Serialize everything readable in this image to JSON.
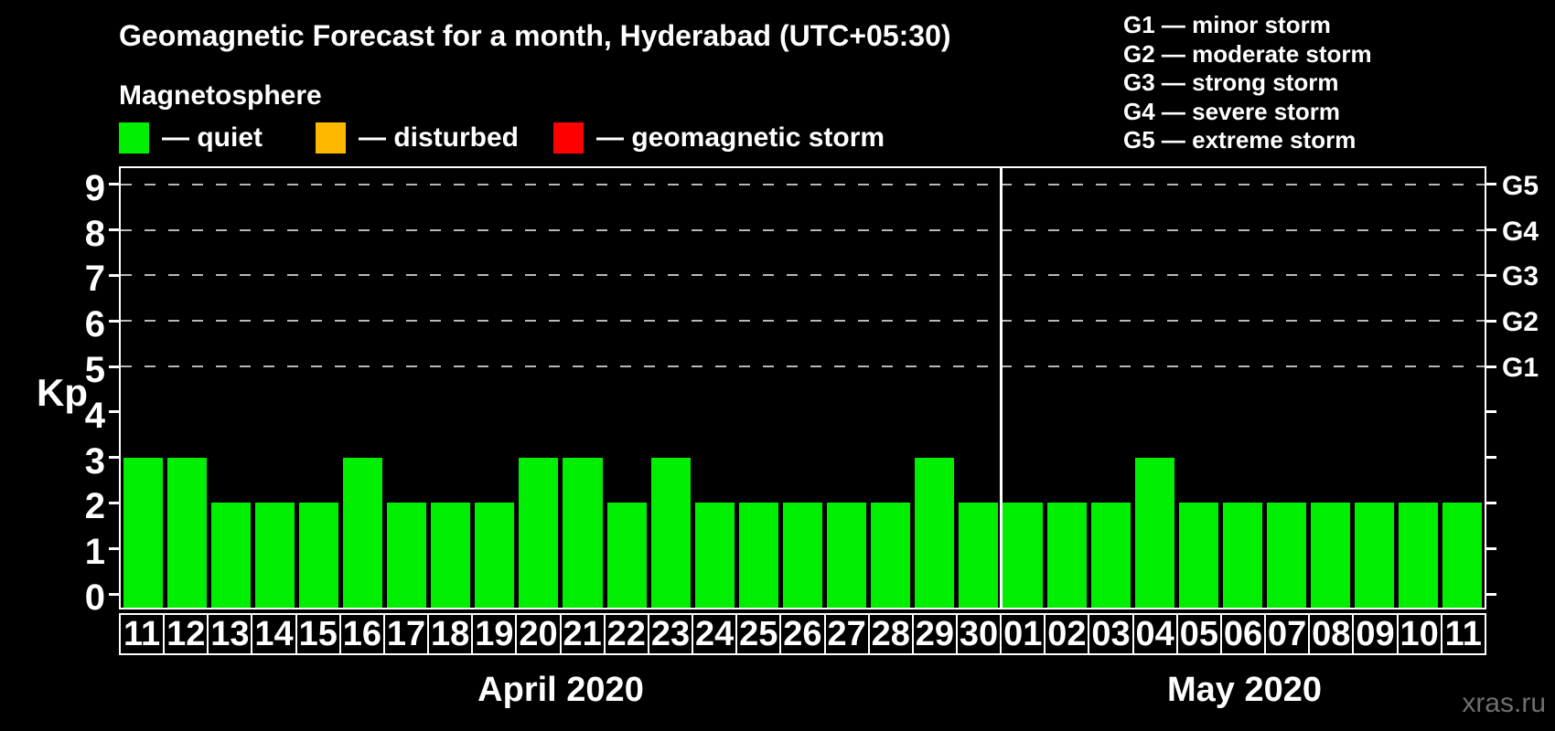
{
  "title": "Geomagnetic Forecast for a month, Hyderabad (UTC+05:30)",
  "subtitle": "Magnetosphere",
  "legend": {
    "items": [
      {
        "name": "quiet",
        "label": "— quiet",
        "color": "#00ee00"
      },
      {
        "name": "disturbed",
        "label": "— disturbed",
        "color": "#ffb800"
      },
      {
        "name": "geomagnetic-storm",
        "label": "— geomagnetic storm",
        "color": "#ff0000"
      }
    ]
  },
  "g_scale_legend": [
    {
      "label": "G1 — minor storm"
    },
    {
      "label": "G2 — moderate storm"
    },
    {
      "label": "G3 — strong storm"
    },
    {
      "label": "G4 — severe storm"
    },
    {
      "label": "G5 — extreme storm"
    }
  ],
  "watermark": "xras.ru",
  "chart_data": {
    "type": "bar",
    "title": "Geomagnetic Forecast for a month, Hyderabad (UTC+05:30)",
    "ylabel": "Kp",
    "y_ticks": [
      0,
      1,
      2,
      3,
      4,
      5,
      6,
      7,
      8,
      9
    ],
    "ylim": [
      0,
      9.4
    ],
    "grid": "dashed horizontal lines at Kp 5-9 (G1-G5 levels)",
    "gridlines_at_kp": [
      5,
      6,
      7,
      8,
      9
    ],
    "right_axis": {
      "labels": [
        "G1",
        "G2",
        "G3",
        "G4",
        "G5"
      ],
      "at_kp": [
        5,
        6,
        7,
        8,
        9
      ]
    },
    "bar_colors": {
      "quiet": "#00ee00",
      "disturbed": "#ffb800",
      "storm": "#ff0000"
    },
    "groups": [
      {
        "label": "April 2020",
        "days": [
          "11",
          "12",
          "13",
          "14",
          "15",
          "16",
          "17",
          "18",
          "19",
          "20",
          "21",
          "22",
          "23",
          "24",
          "25",
          "26",
          "27",
          "28",
          "29",
          "30"
        ],
        "values": [
          3,
          3,
          2,
          2,
          2,
          3,
          2,
          2,
          2,
          3,
          3,
          2,
          3,
          2,
          2,
          2,
          2,
          2,
          3,
          2
        ]
      },
      {
        "label": "May 2020",
        "days": [
          "01",
          "02",
          "03",
          "04",
          "05",
          "06",
          "07",
          "08",
          "09",
          "10",
          "11"
        ],
        "values": [
          2,
          2,
          2,
          3,
          2,
          2,
          2,
          2,
          2,
          2,
          2
        ]
      }
    ],
    "legend_position": "top-left"
  }
}
